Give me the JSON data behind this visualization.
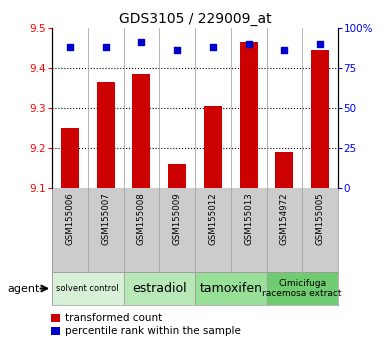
{
  "title": "GDS3105 / 229009_at",
  "samples": [
    "GSM155006",
    "GSM155007",
    "GSM155008",
    "GSM155009",
    "GSM155012",
    "GSM155013",
    "GSM154972",
    "GSM155005"
  ],
  "red_values": [
    9.25,
    9.365,
    9.385,
    9.16,
    9.305,
    9.465,
    9.19,
    9.445
  ],
  "blue_values": [
    88,
    88,
    91,
    86,
    88,
    90,
    86,
    90
  ],
  "ylim_left": [
    9.1,
    9.5
  ],
  "ylim_right": [
    0,
    100
  ],
  "yticks_left": [
    9.1,
    9.2,
    9.3,
    9.4,
    9.5
  ],
  "yticks_right": [
    0,
    25,
    50,
    75,
    100
  ],
  "ytick_right_labels": [
    "0",
    "25",
    "50",
    "75",
    "100%"
  ],
  "groups": [
    {
      "label": "solvent control",
      "start": 0,
      "end": 2,
      "color": "#d8f0d8",
      "fontsize": 6
    },
    {
      "label": "estradiol",
      "start": 2,
      "end": 4,
      "color": "#b8e8b8",
      "fontsize": 9
    },
    {
      "label": "tamoxifen",
      "start": 4,
      "end": 6,
      "color": "#98e098",
      "fontsize": 9
    },
    {
      "label": "Cimicifuga\nracemosa extract",
      "start": 6,
      "end": 8,
      "color": "#70cc70",
      "fontsize": 6.5
    }
  ],
  "bar_color": "#cc0000",
  "dot_color": "#0000cc",
  "bar_bottom": 9.1,
  "legend_red": "transformed count",
  "legend_blue": "percentile rank within the sample",
  "sample_bg": "#cccccc",
  "grid_lines": [
    9.2,
    9.3,
    9.4
  ],
  "agent_label": "agent"
}
